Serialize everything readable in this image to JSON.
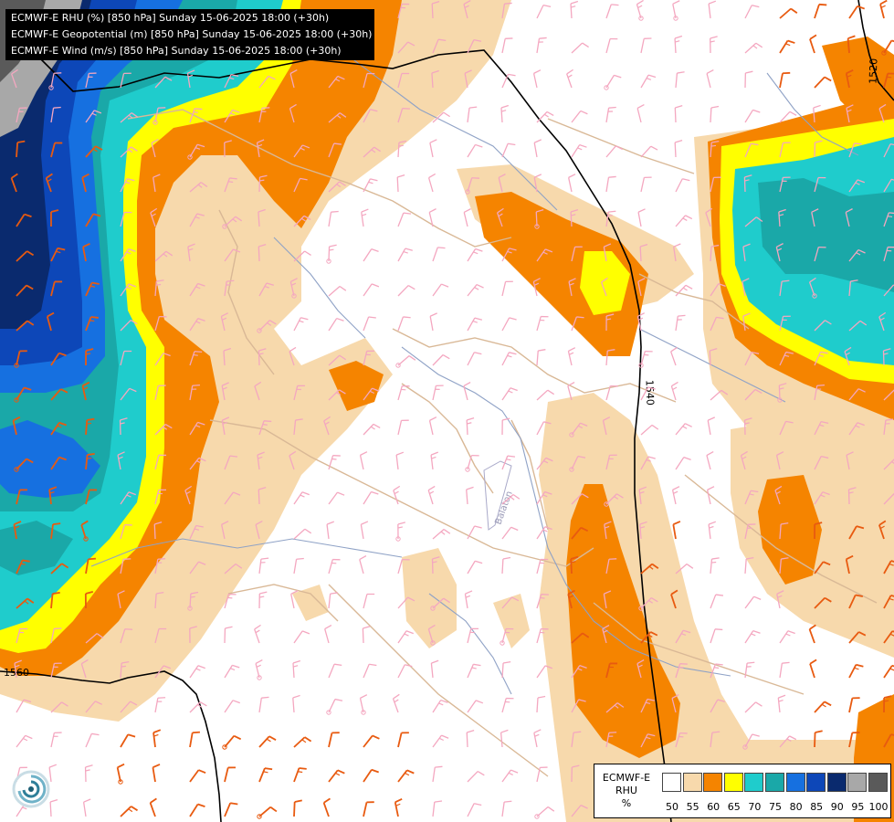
{
  "header": {
    "lines": [
      "ECMWF-E RHU (%) [850 hPa] Sunday 15-06-2025 18:00 (+30h)",
      "ECMWF-E Geopotential (m) [850 hPa] Sunday 15-06-2025 18:00 (+30h)",
      "ECMWF-E Wind (m/s) [850 hPa] Sunday 15-06-2025 18:00 (+30h)"
    ]
  },
  "legend": {
    "title_line1": "ECMWF-E",
    "title_line2": "RHU",
    "title_line3": "%",
    "stops": [
      {
        "label": "50",
        "color": "#ffffff"
      },
      {
        "label": "55",
        "color": "#f7d9ac"
      },
      {
        "label": "60",
        "color": "#f58400"
      },
      {
        "label": "65",
        "color": "#ffff00"
      },
      {
        "label": "70",
        "color": "#1fcccc"
      },
      {
        "label": "75",
        "color": "#1aa8a8"
      },
      {
        "label": "80",
        "color": "#1670e0"
      },
      {
        "label": "85",
        "color": "#0d47b8"
      },
      {
        "label": "90",
        "color": "#0a2a6e"
      },
      {
        "label": "95",
        "color": "#a8a8a8"
      },
      {
        "label": "100",
        "color": "#5a5a5a"
      }
    ]
  },
  "contours": {
    "label_1520": "1520",
    "label_1540": "1540",
    "label_1560": "1560"
  },
  "map_labels": {
    "river": "Balaton"
  },
  "colors": {
    "wind_light": "#f4a7c0",
    "wind_strong": "#e85a10",
    "border": "#d9b896",
    "river": "#8fa2c6"
  }
}
